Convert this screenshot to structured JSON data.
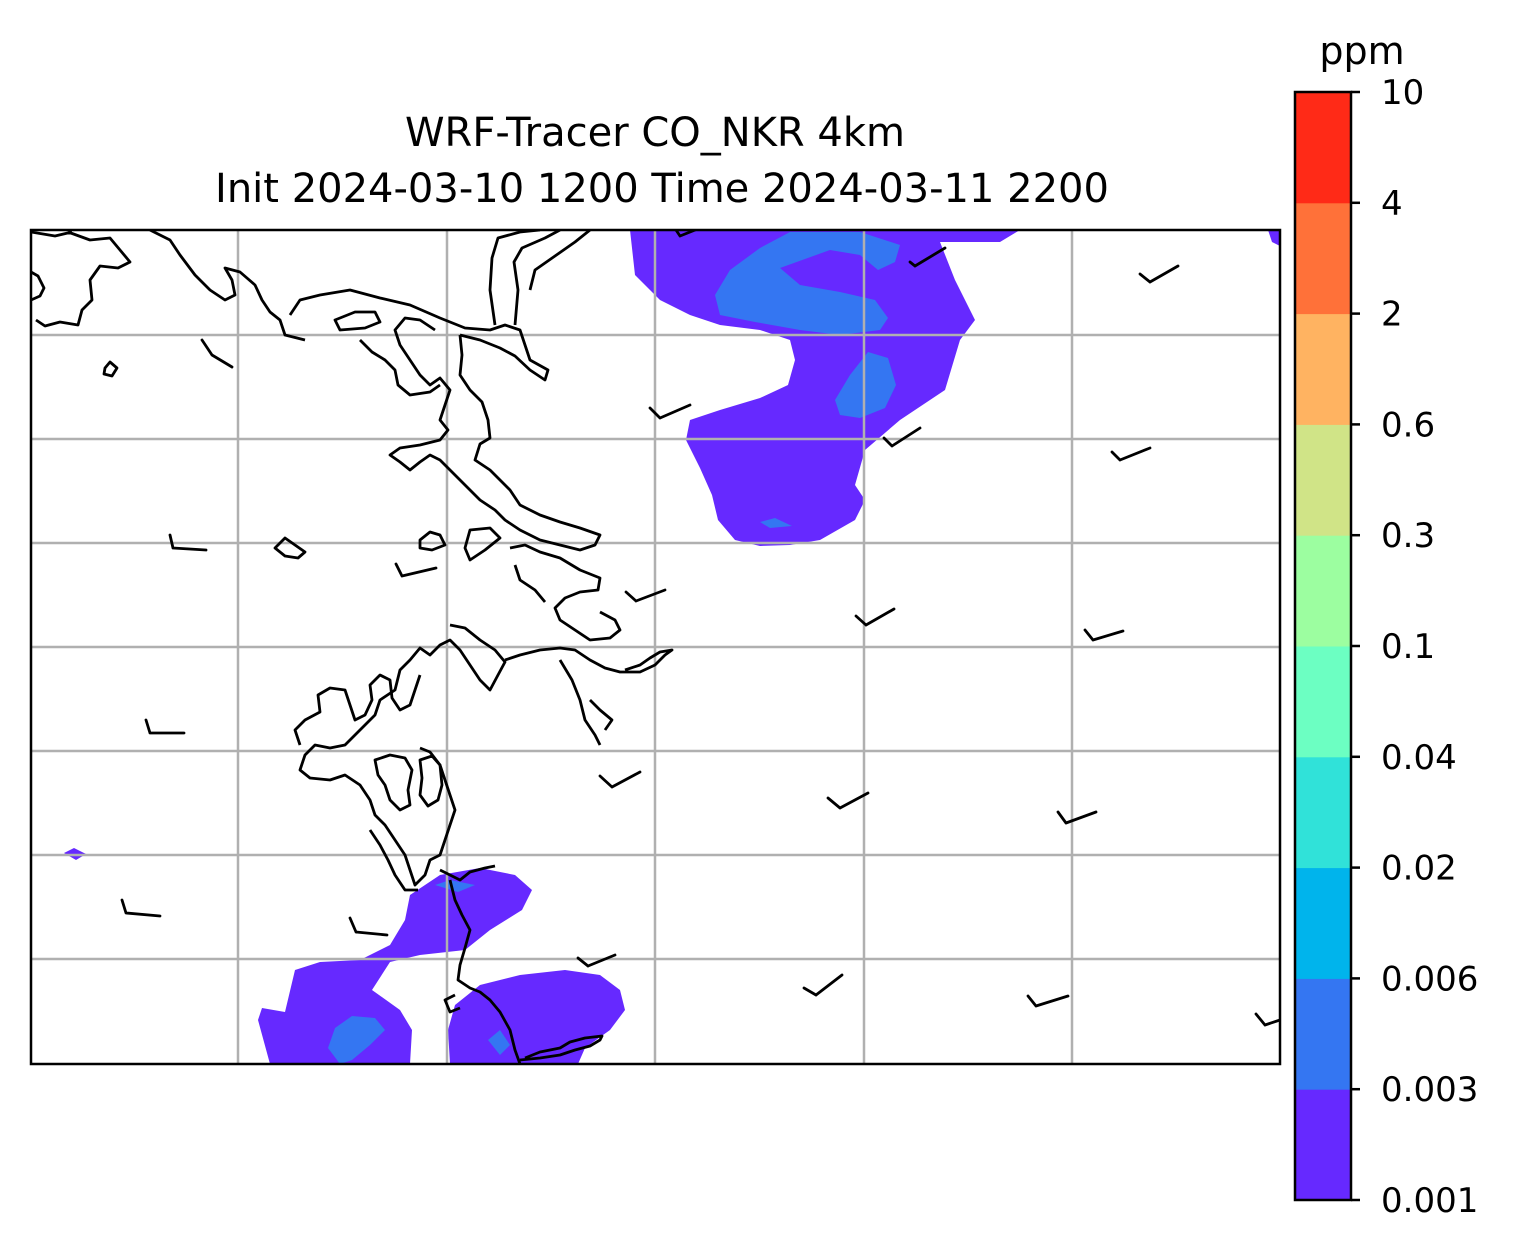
{
  "title": {
    "line1": "WRF-Tracer CO_NKR 4km",
    "line2": "Init 2024-03-10 1200 Time 2024-03-11 2200"
  },
  "colorbar": {
    "unit": "ppm",
    "levels": [
      "0.001",
      "0.003",
      "0.006",
      "0.02",
      "0.04",
      "0.1",
      "0.3",
      "0.6",
      "2",
      "4",
      "10"
    ],
    "colors": [
      "#6629ff",
      "#3476f2",
      "#00b4ec",
      "#30e2d9",
      "#6cffc2",
      "#9cfea0",
      "#d0e487",
      "#ffb361",
      "#ff7139",
      "#ff2a17"
    ]
  },
  "map": {
    "grid": true,
    "coastline_color": "#000000",
    "grid_color": "#b0b0b0",
    "field": "CO tracer concentration",
    "wind_barbs": true
  }
}
